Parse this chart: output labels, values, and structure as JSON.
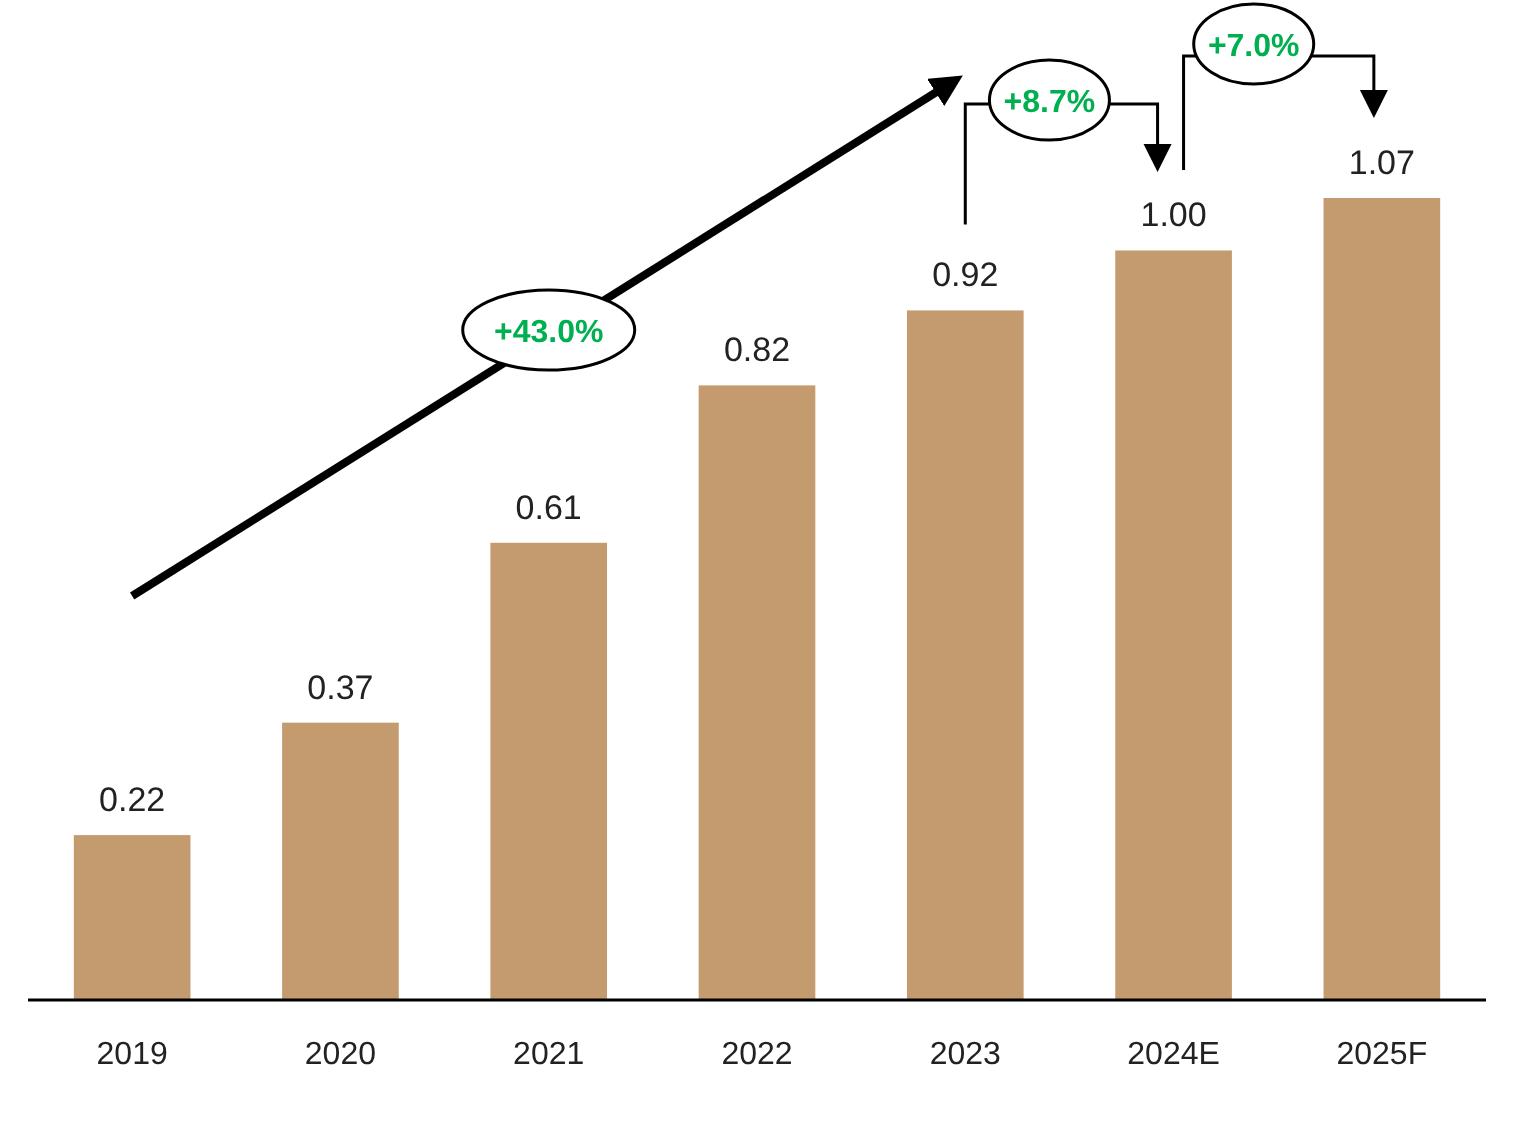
{
  "chart_data": {
    "type": "bar",
    "categories": [
      "2019",
      "2020",
      "2021",
      "2022",
      "2023",
      "2024E",
      "2025F"
    ],
    "values": [
      0.22,
      0.37,
      0.61,
      0.82,
      0.92,
      1.0,
      1.07
    ],
    "color": "#c49a6f",
    "value_labels": [
      "0.22",
      "0.37",
      "0.61",
      "0.82",
      "0.92",
      "1.00",
      "1.07"
    ],
    "annotations": [
      "+43.0%",
      "+8.7%",
      "+7.0%"
    ]
  }
}
